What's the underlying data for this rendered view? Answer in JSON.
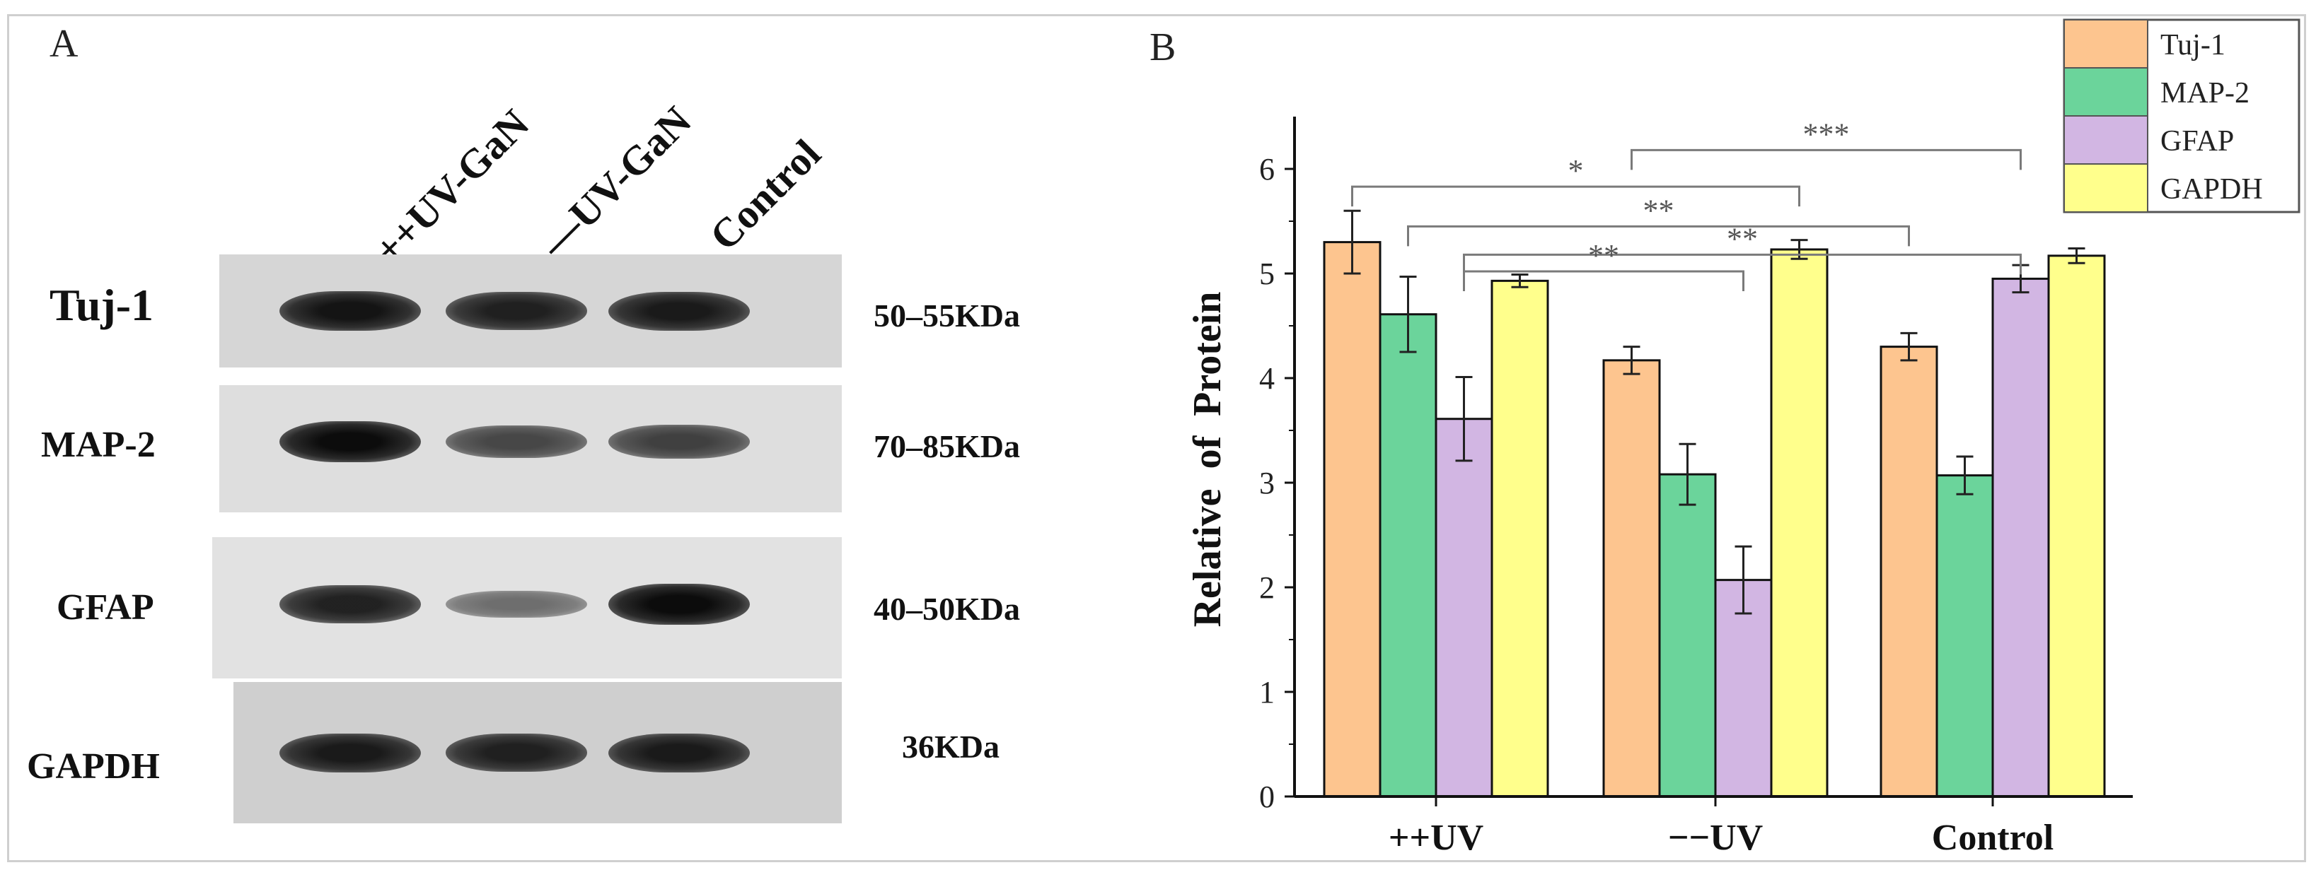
{
  "panel_a": {
    "letter": "A",
    "lanes": [
      "++UV-GaN",
      "—UV-GaN",
      "Control"
    ],
    "rows": [
      {
        "protein": "Tuj-1",
        "size": "50–55KDa",
        "intensities": [
          0.95,
          0.85,
          0.9
        ]
      },
      {
        "protein": "MAP-2",
        "size": "70–85KDa",
        "intensities": [
          1.0,
          0.6,
          0.65
        ]
      },
      {
        "protein": "GFAP",
        "size": "40–50KDa",
        "intensities": [
          0.85,
          0.35,
          1.0
        ]
      },
      {
        "protein": "GAPDH",
        "size": "36KDa",
        "intensities": [
          0.9,
          0.85,
          0.9
        ]
      }
    ]
  },
  "chart_data": {
    "panel_letter": "B",
    "type": "bar",
    "ylabel": "Relative  of  Protein",
    "xlabel": "",
    "ylim": [
      0,
      6.5
    ],
    "yticks": [
      0,
      1,
      2,
      3,
      4,
      5,
      6
    ],
    "categories": [
      "++UV",
      "−−UV",
      "Control"
    ],
    "series": [
      {
        "name": "Tuj-1",
        "color": "#FDC58F",
        "values": [
          5.3,
          4.17,
          4.3
        ],
        "errors": [
          0.3,
          0.13,
          0.13
        ]
      },
      {
        "name": "MAP-2",
        "color": "#6BD49B",
        "values": [
          4.61,
          3.08,
          3.07
        ],
        "errors": [
          0.36,
          0.29,
          0.18
        ]
      },
      {
        "name": "GFAP",
        "color": "#D2B6E3",
        "values": [
          3.61,
          2.07,
          4.95
        ],
        "errors": [
          0.4,
          0.32,
          0.13
        ]
      },
      {
        "name": "GAPDH",
        "color": "#FFFF8C",
        "values": [
          4.93,
          5.23,
          5.17
        ],
        "errors": [
          0.06,
          0.09,
          0.07
        ]
      }
    ],
    "significance": [
      {
        "label": "***",
        "from": {
          "category": 1,
          "series": 0
        },
        "to": {
          "category": 2,
          "series": 2
        },
        "level": 6.18
      },
      {
        "label": "*",
        "from": {
          "category": 0,
          "series": 0
        },
        "to": {
          "category": 1,
          "series": 3
        },
        "level": 5.83
      },
      {
        "label": "**",
        "from": {
          "category": 0,
          "series": 1
        },
        "to": {
          "category": 2,
          "series": 0
        },
        "level": 5.45
      },
      {
        "label": "**",
        "from": {
          "category": 0,
          "series": 2
        },
        "to": {
          "category": 2,
          "series": 2
        },
        "level": 5.18
      },
      {
        "label": "**",
        "from": {
          "category": 0,
          "series": 2
        },
        "to": {
          "category": 1,
          "series": 2
        },
        "level": 5.02
      }
    ],
    "legend_position": "top-right"
  }
}
